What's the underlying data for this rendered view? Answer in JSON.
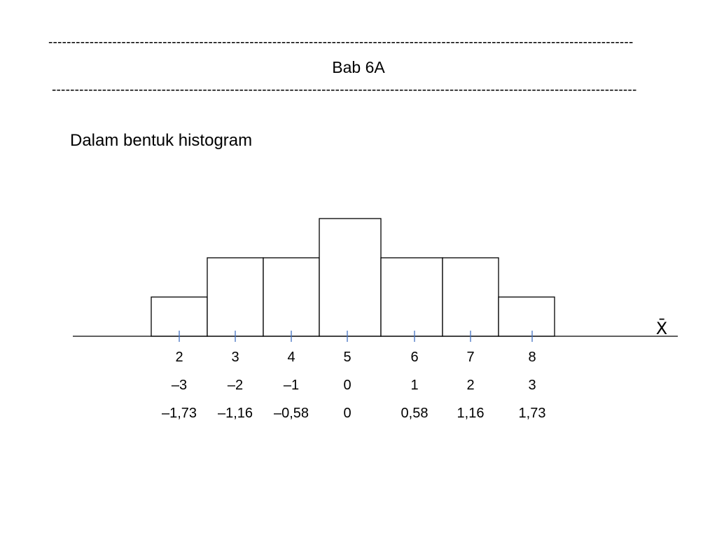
{
  "header": {
    "dash_top": "--------------------------------------------------------------------------------------------------------------------------------",
    "title": "Bab 6A",
    "dash_bottom": "--------------------------------------------------------------------------------------------------------------------------------"
  },
  "subtitle": "Dalam bentuk histogram",
  "chart_data": {
    "type": "bar",
    "title": "",
    "xlabel": "X̄",
    "ylabel": "",
    "grid": false,
    "legend": "none",
    "categories": [
      "2",
      "3",
      "4",
      "5",
      "6",
      "7",
      "8"
    ],
    "values": [
      1,
      2,
      2,
      3,
      2,
      2,
      1
    ],
    "ylim": [
      0,
      3
    ],
    "label_rows": [
      [
        "2",
        "3",
        "4",
        "5",
        "6",
        "7",
        "8"
      ],
      [
        "–3",
        "–2",
        "–1",
        "0",
        "1",
        "2",
        "3"
      ],
      [
        "–1,73",
        "–1,16",
        "–0,58",
        "0",
        "0,58",
        "1,16",
        "1,73"
      ]
    ],
    "colors": {
      "bar_fill": "#ffffff",
      "bar_stroke": "#000000",
      "axis": "#000000",
      "tick": "#4472c4"
    }
  }
}
